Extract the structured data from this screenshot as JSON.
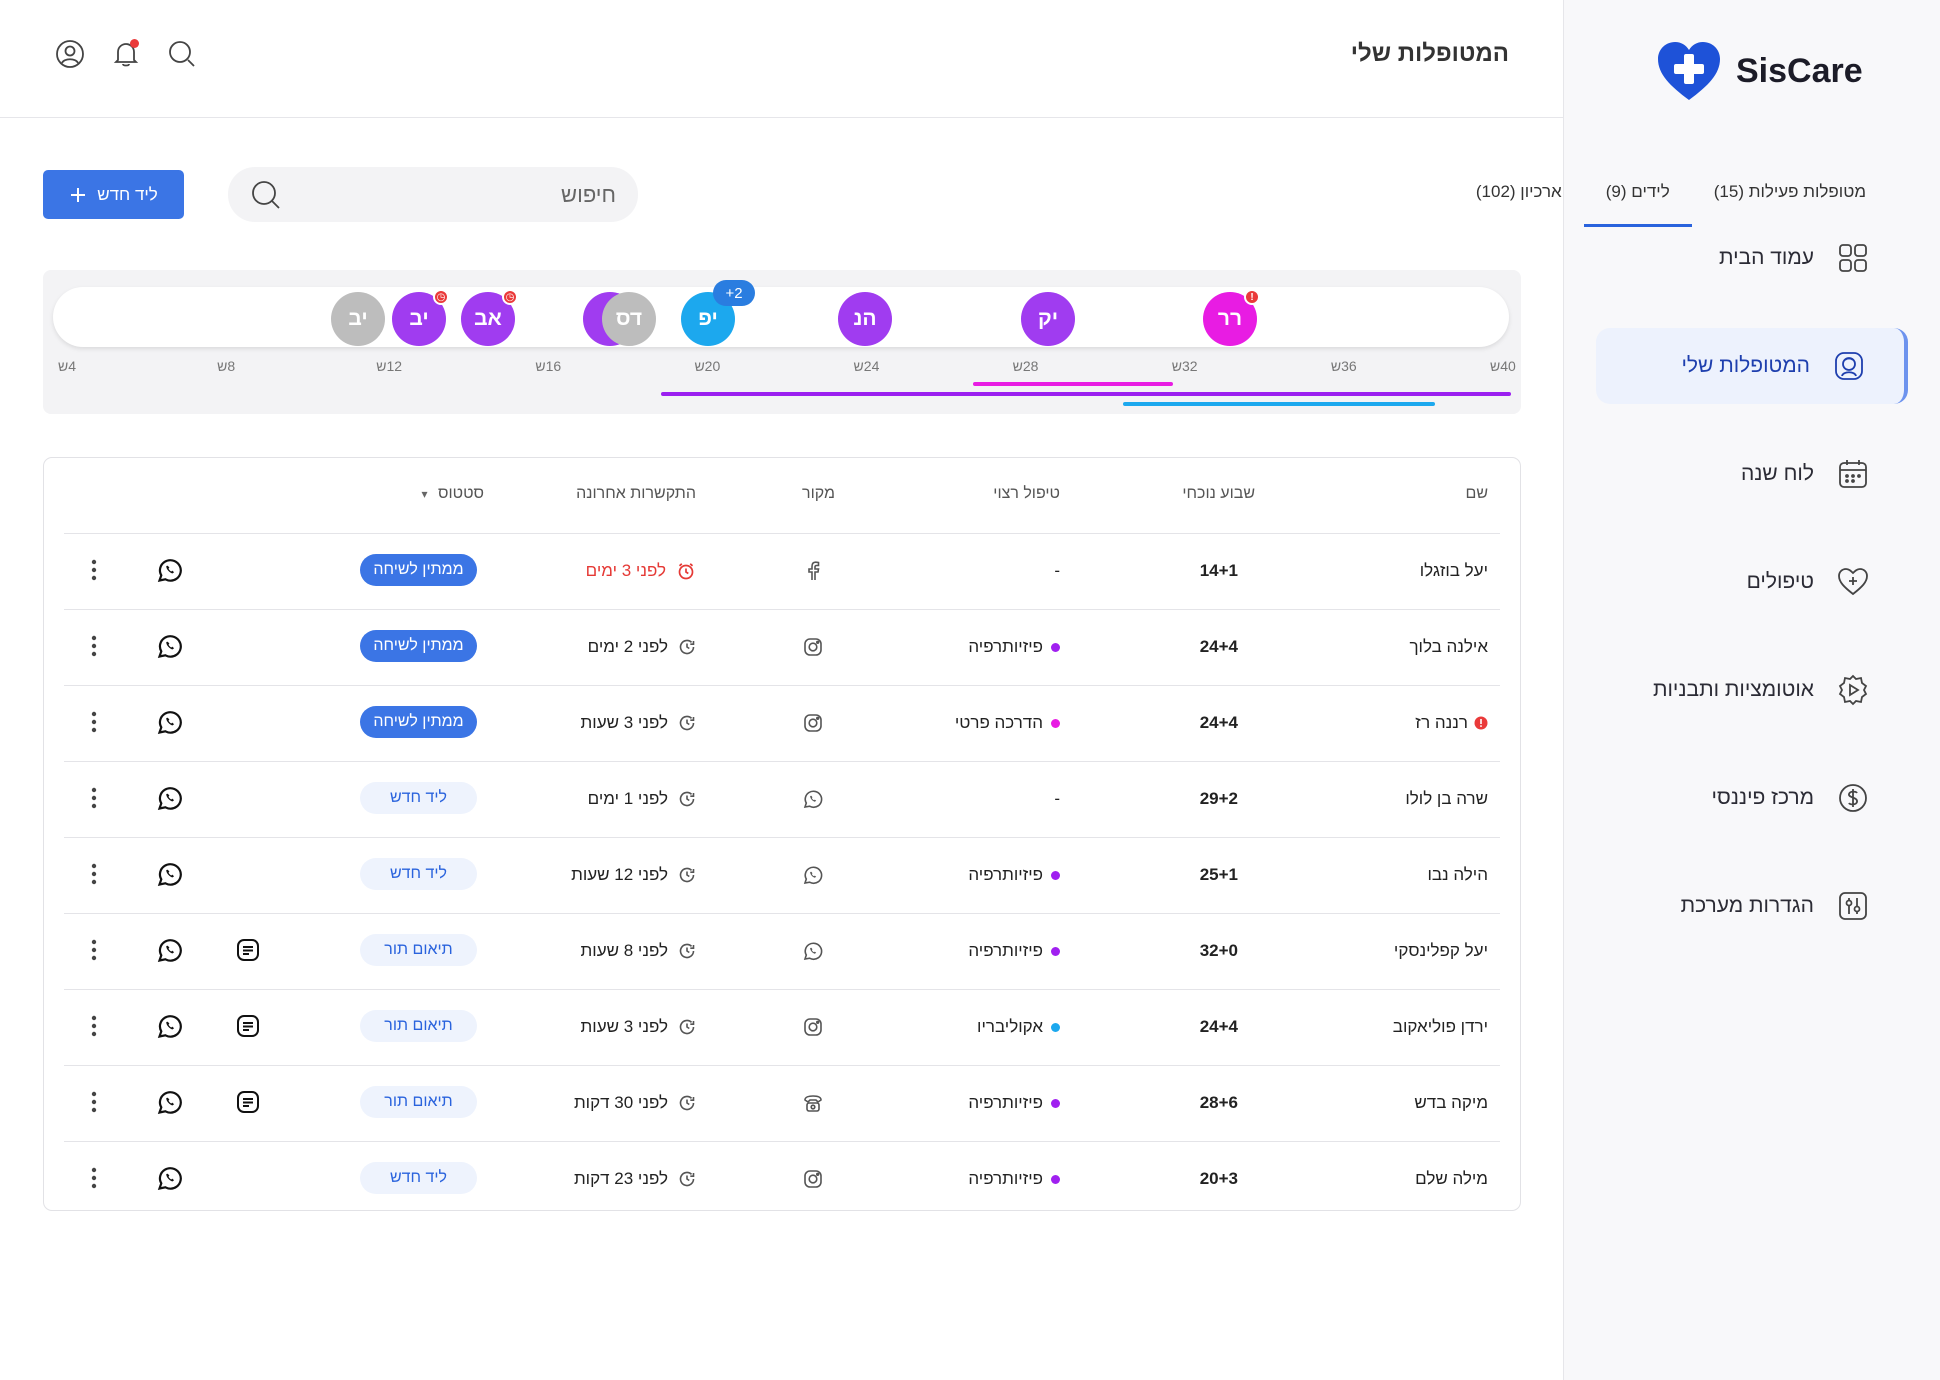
{
  "app": {
    "brand": "SisCare"
  },
  "colors": {
    "accent": "#3b75e5",
    "active_nav_bg": "#edf2fd",
    "alert": "#ea3a3a"
  },
  "sidebar": {
    "items": [
      {
        "label": "עמוד הבית",
        "icon": "grid-icon",
        "active": false
      },
      {
        "label": "המטופלות שלי",
        "icon": "patient-icon",
        "active": true
      },
      {
        "label": "לוח שנה",
        "icon": "calendar-icon",
        "active": false
      },
      {
        "label": "טיפולים",
        "icon": "heart-plus-icon",
        "active": false
      },
      {
        "label": "אוטומציות ותבניות",
        "icon": "automation-gear-icon",
        "active": false
      },
      {
        "label": "מרכז פיננסי",
        "icon": "dollar-icon",
        "active": false
      },
      {
        "label": "הגדרות מערכת",
        "icon": "settings-sliders-icon",
        "active": false
      }
    ]
  },
  "header": {
    "title": "המטופלות שלי",
    "icons": [
      "search-icon",
      "bell-icon",
      "user-icon"
    ]
  },
  "tabs": [
    {
      "label": "מטופלות פעילות (15)",
      "active": false
    },
    {
      "label": "לידים (9)",
      "active": true
    },
    {
      "label": "ארכיון (102)",
      "active": false
    }
  ],
  "search": {
    "placeholder": "חיפוש"
  },
  "new_lead": {
    "label": "ליד חדש"
  },
  "timeline": {
    "weeks": [
      "4ש",
      "8ש",
      "12ש",
      "16ש",
      "20ש",
      "24ש",
      "28ש",
      "32ש",
      "36ש",
      "40ש"
    ],
    "bubbles": [
      {
        "initials": "רר",
        "color": "#e81ce3",
        "alert": "!"
      },
      {
        "initials": "יק",
        "color": "#a03cf0"
      },
      {
        "initials": "הנ",
        "color": "#a03cf0"
      },
      {
        "initials": "יפ",
        "color": "#1ca8ee",
        "more": "+2"
      },
      {
        "initials": "דס",
        "color": "#bdbdbd"
      },
      {
        "initials": "ס",
        "color": "#a03cf0"
      },
      {
        "initials": "אב",
        "color": "#a03cf0",
        "alert": "◷"
      },
      {
        "initials": "יב",
        "color": "#a03cf0",
        "alert": "◷"
      },
      {
        "initials": "יב",
        "color": "#bdbdbd"
      }
    ]
  },
  "table": {
    "headers": {
      "name": "שם",
      "week": "שבוע נוכחי",
      "treatment": "טיפול רצוי",
      "source": "מקור",
      "last": "התקשרות אחרונה",
      "status": "סטטוס",
      "status_caret": "▾"
    },
    "rows": [
      {
        "name": "יעל בוזגלו",
        "week": "14+1",
        "treatment": "-",
        "treatment_color": "",
        "source": "facebook-icon",
        "last": "לפני 3 ימים",
        "hot": true,
        "status": "ממתין לשיחה",
        "status_style": "wait",
        "doc": false
      },
      {
        "name": "אילנה בלוך",
        "week": "24+4",
        "treatment": "פיזיותרפיה",
        "treatment_color": "#a020f0",
        "source": "instagram-icon",
        "last": "לפני 2 ימים",
        "hot": false,
        "status": "ממתין לשיחה",
        "status_style": "wait",
        "doc": false
      },
      {
        "name": "רננה רז",
        "week": "24+4",
        "treatment": "הדרכה פרטי",
        "treatment_color": "#e81ce3",
        "source": "instagram-icon",
        "last": "לפני 3 שעות",
        "hot": false,
        "status": "ממתין לשיחה",
        "status_style": "wait",
        "doc": false,
        "alert": true
      },
      {
        "name": "שרה בן לולו",
        "week": "29+2",
        "treatment": "-",
        "treatment_color": "",
        "source": "whatsapp-icon",
        "last": "לפני 1 ימים",
        "hot": false,
        "status": "ליד חדש",
        "status_style": "light",
        "doc": false
      },
      {
        "name": "הילה נבו",
        "week": "25+1",
        "treatment": "פיזיותרפיה",
        "treatment_color": "#a020f0",
        "source": "whatsapp-icon",
        "last": "לפני 12 שעות",
        "hot": false,
        "status": "ליד חדש",
        "status_style": "light",
        "doc": false
      },
      {
        "name": "יעל קפלינסקי",
        "week": "32+0",
        "treatment": "פיזיותרפיה",
        "treatment_color": "#a020f0",
        "source": "whatsapp-icon",
        "last": "לפני 8 שעות",
        "hot": false,
        "status": "תיאום תור",
        "status_style": "light",
        "doc": true
      },
      {
        "name": "ירדן פוליאקוב",
        "week": "24+4",
        "treatment": "אקוליבריו",
        "treatment_color": "#1ca8ee",
        "source": "instagram-icon",
        "last": "לפני 3 שעות",
        "hot": false,
        "status": "תיאום תור",
        "status_style": "light",
        "doc": true
      },
      {
        "name": "מיקה בדש",
        "week": "28+6",
        "treatment": "פיזיותרפיה",
        "treatment_color": "#a020f0",
        "source": "phone-icon",
        "last": "לפני 30 דקות",
        "hot": false,
        "status": "תיאום תור",
        "status_style": "light",
        "doc": true
      },
      {
        "name": "מילה שלם",
        "week": "20+3",
        "treatment": "פיזיותרפיה",
        "treatment_color": "#a020f0",
        "source": "instagram-icon",
        "last": "לפני 23 דקות",
        "hot": false,
        "status": "ליד חדש",
        "status_style": "light",
        "doc": false
      }
    ]
  }
}
